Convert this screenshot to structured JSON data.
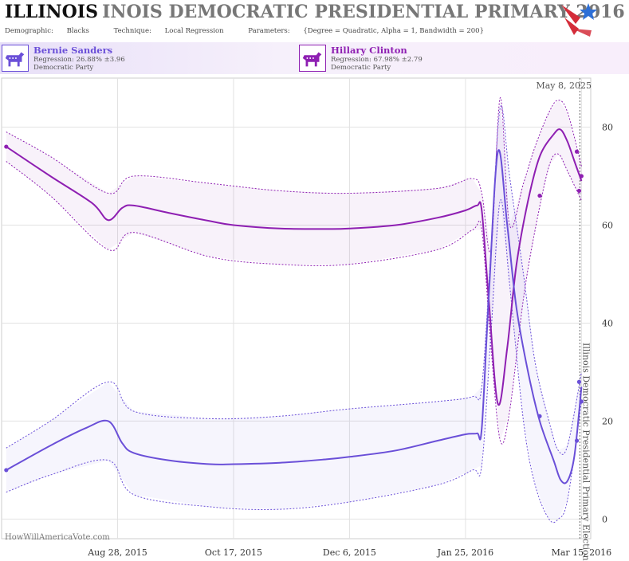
{
  "header": {
    "state": "ILLINOIS",
    "title_rest": "INOIS DEMOCRATIC PRESIDENTIAL PRIMARY 2016",
    "demographic_label": "Demographic:",
    "demographic_value": "Blacks",
    "technique_label": "Technique:",
    "technique_value": "Local Regression",
    "parameters_label": "Parameters:",
    "parameters_value": "{Degree = Quadratic, Alpha = 1, Bandwidth = 200}"
  },
  "logo_icon": "star-flag-logo-icon",
  "candidates": [
    {
      "name": "Bernie Sanders",
      "regression": "Regression: 26.88% ±3.96",
      "party": "Democratic Party",
      "color": "#6a4fd8",
      "icon": "donkey-icon"
    },
    {
      "name": "Hillary Clinton",
      "regression": "Regression: 67.98% ±2.79",
      "party": "Democratic Party",
      "color": "#8e1fb2",
      "icon": "donkey-icon"
    }
  ],
  "chart_data": {
    "type": "line",
    "date_label": "May 8, 2025",
    "election_label": "Illinois Democratic Presidential Primary Election",
    "election_date": "2016-03-15",
    "watermark": "HowWillAmericaVote.com",
    "x_ticks": [
      "2015-08-28",
      "2015-10-17",
      "2015-12-06",
      "2016-01-25",
      "2016-03-15"
    ],
    "x_tick_labels": [
      "Aug 28, 2015",
      "Oct 17, 2015",
      "Dec 6, 2015",
      "Jan 25, 2016",
      "Mar 15, 2016"
    ],
    "x_range": [
      "2015-07-09",
      "2016-03-19"
    ],
    "y_ticks": [
      0,
      20,
      40,
      60,
      80
    ],
    "ylim": [
      -4,
      90
    ],
    "grid": true,
    "series": [
      {
        "name": "Hillary Clinton",
        "color": "#8e1fb2",
        "points": [
          [
            "2015-07-11",
            76
          ],
          [
            "2016-03-13",
            75
          ],
          [
            "2016-03-14",
            67
          ],
          [
            "2016-03-15",
            70
          ],
          [
            "2016-02-26",
            66
          ]
        ],
        "trend": [
          [
            "2015-07-11",
            76
          ],
          [
            "2015-07-30",
            70
          ],
          [
            "2015-08-17",
            64.5
          ],
          [
            "2015-08-24",
            61
          ],
          [
            "2015-08-30",
            63.5
          ],
          [
            "2015-09-04",
            64
          ],
          [
            "2015-09-19",
            62.5
          ],
          [
            "2015-10-07",
            60.8
          ],
          [
            "2015-10-17",
            60
          ],
          [
            "2015-11-06",
            59.3
          ],
          [
            "2015-11-26",
            59.2
          ],
          [
            "2015-12-06",
            59.3
          ],
          [
            "2015-12-26",
            60
          ],
          [
            "2016-01-13",
            61.5
          ],
          [
            "2016-01-25",
            63
          ],
          [
            "2016-01-30",
            64
          ],
          [
            "2016-02-01",
            63
          ],
          [
            "2016-02-04",
            45
          ],
          [
            "2016-02-08",
            23.5
          ],
          [
            "2016-02-12",
            35
          ],
          [
            "2016-02-16",
            52
          ],
          [
            "2016-02-21",
            65
          ],
          [
            "2016-02-26",
            74
          ],
          [
            "2016-03-03",
            78.5
          ],
          [
            "2016-03-06",
            79.5
          ],
          [
            "2016-03-09",
            77
          ],
          [
            "2016-03-12",
            73
          ],
          [
            "2016-03-15",
            69
          ]
        ],
        "upper": [
          [
            "2015-07-11",
            79
          ],
          [
            "2015-07-30",
            74
          ],
          [
            "2015-08-24",
            66.5
          ],
          [
            "2015-09-04",
            70
          ],
          [
            "2015-10-07",
            68.5
          ],
          [
            "2015-11-06",
            67
          ],
          [
            "2015-12-06",
            66.5
          ],
          [
            "2016-01-13",
            67.5
          ],
          [
            "2016-01-28",
            69.5
          ],
          [
            "2016-02-01",
            66.5
          ],
          [
            "2016-02-05",
            55
          ],
          [
            "2016-02-09",
            86
          ],
          [
            "2016-02-13",
            60
          ],
          [
            "2016-02-19",
            68.5
          ],
          [
            "2016-02-24",
            76
          ],
          [
            "2016-03-01",
            83
          ],
          [
            "2016-03-05",
            85.5
          ],
          [
            "2016-03-09",
            83
          ],
          [
            "2016-03-15",
            72
          ]
        ],
        "lower": [
          [
            "2015-07-11",
            73
          ],
          [
            "2015-07-30",
            66
          ],
          [
            "2015-08-24",
            55
          ],
          [
            "2015-09-04",
            58.5
          ],
          [
            "2015-10-07",
            53.5
          ],
          [
            "2015-11-06",
            52
          ],
          [
            "2015-12-06",
            52
          ],
          [
            "2016-01-13",
            55
          ],
          [
            "2016-01-28",
            59
          ],
          [
            "2016-02-01",
            59
          ],
          [
            "2016-02-05",
            35
          ],
          [
            "2016-02-09",
            16
          ],
          [
            "2016-02-13",
            22
          ],
          [
            "2016-02-19",
            45
          ],
          [
            "2016-02-24",
            59
          ],
          [
            "2016-03-01",
            72
          ],
          [
            "2016-03-05",
            74.5
          ],
          [
            "2016-03-09",
            71
          ],
          [
            "2016-03-15",
            65
          ]
        ]
      },
      {
        "name": "Bernie Sanders",
        "color": "#6a4fd8",
        "points": [
          [
            "2015-07-11",
            10
          ],
          [
            "2016-03-14",
            28
          ],
          [
            "2016-03-15",
            24
          ],
          [
            "2016-03-13",
            16
          ],
          [
            "2016-02-26",
            21
          ]
        ],
        "trend": [
          [
            "2015-07-11",
            10
          ],
          [
            "2015-07-30",
            15
          ],
          [
            "2015-08-14",
            18.5
          ],
          [
            "2015-08-24",
            20
          ],
          [
            "2015-08-30",
            15.5
          ],
          [
            "2015-09-04",
            13.5
          ],
          [
            "2015-09-19",
            12
          ],
          [
            "2015-10-07",
            11.2
          ],
          [
            "2015-10-17",
            11.2
          ],
          [
            "2015-11-06",
            11.5
          ],
          [
            "2015-11-26",
            12.2
          ],
          [
            "2015-12-06",
            12.7
          ],
          [
            "2015-12-26",
            14
          ],
          [
            "2016-01-13",
            16
          ],
          [
            "2016-01-25",
            17.3
          ],
          [
            "2016-01-30",
            17.5
          ],
          [
            "2016-02-01",
            18.5
          ],
          [
            "2016-02-04",
            45
          ],
          [
            "2016-02-08",
            75
          ],
          [
            "2016-02-12",
            60
          ],
          [
            "2016-02-16",
            43
          ],
          [
            "2016-02-21",
            30
          ],
          [
            "2016-02-26",
            20
          ],
          [
            "2016-03-03",
            12
          ],
          [
            "2016-03-06",
            8
          ],
          [
            "2016-03-09",
            7.8
          ],
          [
            "2016-03-12",
            13
          ],
          [
            "2016-03-15",
            27
          ]
        ],
        "upper": [
          [
            "2015-07-11",
            14.5
          ],
          [
            "2015-07-30",
            20
          ],
          [
            "2015-08-24",
            28
          ],
          [
            "2015-09-04",
            22
          ],
          [
            "2015-10-07",
            20.5
          ],
          [
            "2015-11-06",
            21
          ],
          [
            "2015-12-06",
            22.5
          ],
          [
            "2016-01-13",
            24
          ],
          [
            "2016-01-28",
            25
          ],
          [
            "2016-02-01",
            27
          ],
          [
            "2016-02-05",
            55
          ],
          [
            "2016-02-09",
            84
          ],
          [
            "2016-02-13",
            70
          ],
          [
            "2016-02-19",
            50
          ],
          [
            "2016-02-24",
            32
          ],
          [
            "2016-03-01",
            20
          ],
          [
            "2016-03-05",
            14
          ],
          [
            "2016-03-09",
            15
          ],
          [
            "2016-03-15",
            30
          ]
        ],
        "lower": [
          [
            "2015-07-11",
            5.5
          ],
          [
            "2015-07-30",
            9
          ],
          [
            "2015-08-24",
            12
          ],
          [
            "2015-09-04",
            5
          ],
          [
            "2015-10-07",
            2.5
          ],
          [
            "2015-11-06",
            2
          ],
          [
            "2015-12-06",
            3.5
          ],
          [
            "2016-01-13",
            7
          ],
          [
            "2016-01-28",
            10
          ],
          [
            "2016-02-01",
            11
          ],
          [
            "2016-02-05",
            38
          ],
          [
            "2016-02-09",
            65
          ],
          [
            "2016-02-13",
            48
          ],
          [
            "2016-02-19",
            20
          ],
          [
            "2016-02-24",
            7
          ],
          [
            "2016-03-01",
            0
          ],
          [
            "2016-03-05",
            0
          ],
          [
            "2016-03-09",
            4
          ],
          [
            "2016-03-15",
            24
          ]
        ]
      }
    ]
  }
}
